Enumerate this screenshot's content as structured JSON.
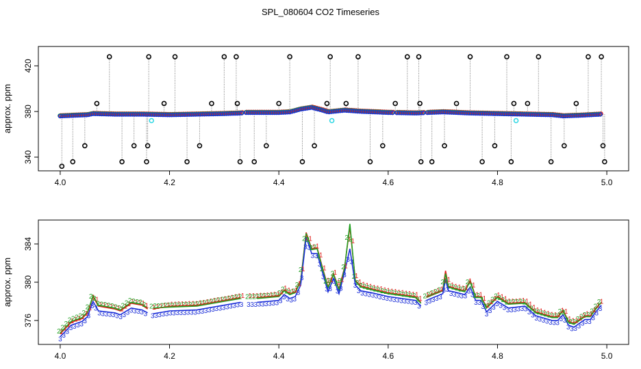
{
  "title": "SPL_080604  CO2 Timeseries",
  "chart_data": [
    {
      "type": "scatter",
      "panel": "top",
      "title": "SPL_080604  CO2 Timeseries",
      "xlabel": "",
      "ylabel": "approx. ppm",
      "xlim": [
        3.96,
        5.04
      ],
      "ylim": [
        328,
        437
      ],
      "xticks": [
        "4.0",
        "4.2",
        "4.4",
        "4.6",
        "4.8",
        "5.0"
      ],
      "xtick_values": [
        4.0,
        4.2,
        4.4,
        4.6,
        4.8,
        5.0
      ],
      "yticks": [
        "340",
        "380",
        "420"
      ],
      "ytick_values": [
        340,
        380,
        420
      ],
      "baseline": {
        "x": [
          4.0,
          4.05,
          4.06,
          4.1,
          4.15,
          4.2,
          4.3,
          4.33,
          4.34,
          4.4,
          4.42,
          4.44,
          4.46,
          4.48,
          4.49,
          4.5,
          4.52,
          4.55,
          4.6,
          4.65,
          4.7,
          4.75,
          4.8,
          4.85,
          4.9,
          4.92,
          4.95,
          4.99
        ],
        "values": [
          376,
          377,
          378,
          377.5,
          377.5,
          377,
          378,
          378.5,
          379,
          379,
          379.5,
          382,
          383.5,
          381,
          379.5,
          380,
          381,
          380,
          379,
          378.5,
          379.5,
          378.5,
          378,
          377.5,
          377,
          376,
          376.5,
          377.5
        ]
      },
      "spikes": {
        "x": [
          4.003,
          4.023,
          4.045,
          4.067,
          4.09,
          4.113,
          4.135,
          4.158,
          4.16,
          4.162,
          4.19,
          4.21,
          4.232,
          4.255,
          4.277,
          4.3,
          4.322,
          4.324,
          4.329,
          4.355,
          4.377,
          4.4,
          4.42,
          4.443,
          4.465,
          4.488,
          4.494,
          4.523,
          4.545,
          4.567,
          4.59,
          4.613,
          4.635,
          4.656,
          4.658,
          4.66,
          4.68,
          4.703,
          4.725,
          4.75,
          4.772,
          4.795,
          4.817,
          4.825,
          4.83,
          4.855,
          4.875,
          4.898,
          4.922,
          4.944,
          4.966,
          4.99,
          4.993,
          4.996
        ],
        "values": [
          332,
          336,
          350,
          387,
          428,
          336,
          350,
          336,
          350,
          428,
          387,
          428,
          336,
          350,
          387,
          428,
          428,
          387,
          336,
          336,
          350,
          387,
          428,
          336,
          350,
          387,
          428,
          387,
          428,
          336,
          350,
          387,
          428,
          428,
          387,
          336,
          336,
          350,
          387,
          428,
          336,
          350,
          428,
          336,
          387,
          387,
          428,
          336,
          350,
          387,
          428,
          428,
          350,
          336
        ]
      },
      "cyan_outliers": {
        "x": [
          4.167,
          4.497,
          4.834
        ],
        "values": [
          372,
          372,
          372
        ]
      }
    },
    {
      "type": "line",
      "panel": "bottom",
      "xlabel": "",
      "ylabel": "approx. ppm",
      "xlim": [
        3.96,
        5.04
      ],
      "ylim": [
        373.5,
        386.5
      ],
      "xticks": [
        "4.0",
        "4.2",
        "4.4",
        "4.6",
        "4.8",
        "5.0"
      ],
      "xtick_values": [
        4.0,
        4.2,
        4.4,
        4.6,
        4.8,
        5.0
      ],
      "yticks": [
        "376",
        "380",
        "384"
      ],
      "ytick_values": [
        376,
        380,
        384
      ],
      "x": [
        4.0,
        4.01,
        4.02,
        4.04,
        4.05,
        4.055,
        4.06,
        4.07,
        4.1,
        4.11,
        4.13,
        4.15,
        4.16,
        4.17,
        4.2,
        4.25,
        4.3,
        4.32,
        4.33,
        4.36,
        4.38,
        4.4,
        4.41,
        4.42,
        4.43,
        4.44,
        4.45,
        4.46,
        4.47,
        4.48,
        4.49,
        4.5,
        4.51,
        4.52,
        4.53,
        4.54,
        4.55,
        4.57,
        4.6,
        4.65,
        4.66,
        4.67,
        4.7,
        4.705,
        4.71,
        4.72,
        4.74,
        4.75,
        4.76,
        4.77,
        4.78,
        4.8,
        4.82,
        4.85,
        4.87,
        4.9,
        4.91,
        4.92,
        4.93,
        4.94,
        4.96,
        4.97,
        4.98,
        4.99
      ],
      "series": [
        {
          "name": "1",
          "values": [
            374.6,
            375.2,
            375.8,
            376.2,
            376.8,
            377.6,
            378.5,
            377.5,
            377.2,
            377,
            377.8,
            377.6,
            377.2,
            377.2,
            377.5,
            377.6,
            378.1,
            378.3,
            378.4,
            378.4,
            378.5,
            378.6,
            379.2,
            378.8,
            379,
            380.2,
            385.2,
            383.5,
            383.6,
            381.5,
            379.5,
            380.9,
            379.3,
            381.5,
            385.8,
            380.2,
            379.6,
            379.3,
            378.9,
            378.5,
            377.9,
            378.5,
            379.2,
            381.2,
            379.6,
            379.4,
            379.1,
            380.2,
            378.5,
            378.5,
            377.4,
            378.5,
            377.8,
            377.9,
            376.9,
            376.4,
            376.4,
            377.1,
            375.9,
            375.7,
            376.5,
            376.5,
            377.3,
            377.9
          ]
        },
        {
          "name": "2",
          "values": [
            374.7,
            375.3,
            375.9,
            376.3,
            376.9,
            377.7,
            378.6,
            377.6,
            377.3,
            377.1,
            377.9,
            377.7,
            377.3,
            377.3,
            377.4,
            377.5,
            378,
            378.2,
            378.3,
            378.3,
            378.4,
            378.5,
            379.1,
            378.7,
            378.9,
            380.1,
            385.1,
            383.4,
            383.5,
            381.4,
            379.4,
            380.8,
            379.2,
            381.4,
            386.1,
            380.1,
            379.5,
            379.2,
            378.8,
            378.4,
            377.8,
            378.4,
            379.1,
            380.9,
            379.5,
            379.3,
            379,
            380.1,
            378.4,
            378.4,
            377.3,
            378.4,
            377.7,
            377.8,
            376.8,
            376.3,
            376.3,
            377,
            375.8,
            375.6,
            376.4,
            376.4,
            377.2,
            377.9
          ]
        },
        {
          "name": "3",
          "values": [
            374.3,
            374.9,
            375.5,
            375.9,
            376.4,
            377.2,
            378,
            377,
            376.8,
            376.6,
            377.3,
            377.1,
            376.8,
            376.7,
            377,
            377.1,
            377.6,
            377.8,
            377.9,
            377.9,
            378,
            378.1,
            378.7,
            378.3,
            378.5,
            379.7,
            384.7,
            383,
            383,
            381,
            379,
            380.4,
            378.8,
            381,
            383.5,
            379.7,
            379.1,
            378.9,
            378.5,
            378.1,
            377.5,
            378.1,
            378.8,
            380.3,
            379.1,
            379,
            378.7,
            379.5,
            378.1,
            378.1,
            376.9,
            378,
            377.3,
            377.5,
            376.5,
            376,
            376,
            376.6,
            375.5,
            375.3,
            376.1,
            376.1,
            376.9,
            377.6
          ]
        }
      ]
    }
  ]
}
